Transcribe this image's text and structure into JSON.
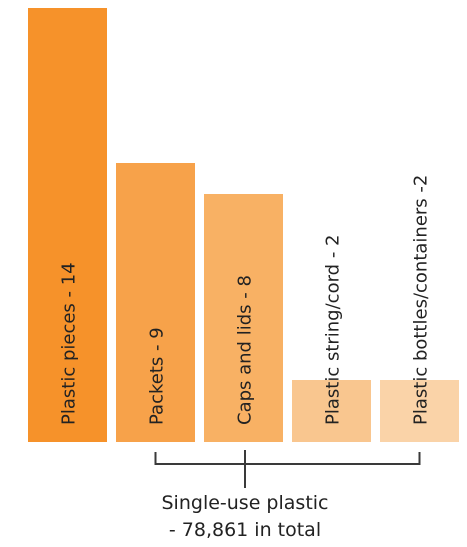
{
  "chart_data": {
    "type": "bar",
    "title": "",
    "xlabel": "",
    "ylabel": "",
    "categories": [
      "Plastic pieces",
      "Packets",
      "Caps and lids",
      "Plastic string/cord",
      "Plastic bottles/containers"
    ],
    "values": [
      14,
      9,
      8,
      2,
      2
    ],
    "labels": [
      "Plastic pieces - 14",
      "Packets - 9",
      "Caps and lids - 8",
      "Plastic string/cord - 2",
      "Plastic bottles/containers -2"
    ],
    "colors": [
      "#F6922A",
      "#F7A24A",
      "#F8B164",
      "#F9C68F",
      "#FAD3A8"
    ],
    "bracket_color": "#3a3a3a",
    "ylim": [
      0,
      14
    ],
    "grid": false,
    "legend": "none"
  },
  "caption": {
    "line1": "Single-use plastic",
    "line2": "- 78,861 in total"
  }
}
